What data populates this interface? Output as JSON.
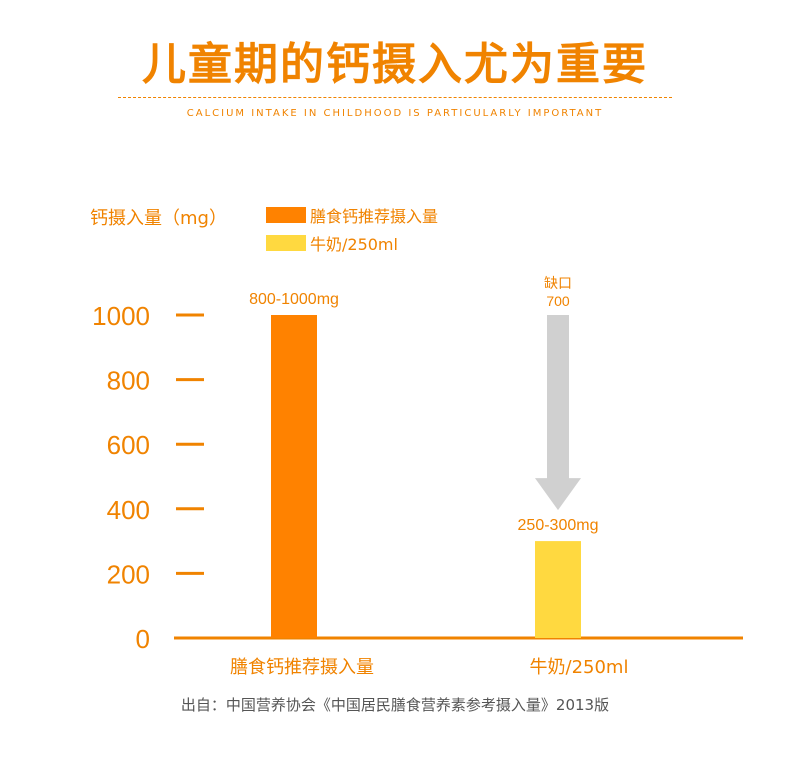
{
  "header": {
    "title": "儿童期的钙摄入尤为重要",
    "subtitle": "CALCIUM INTAKE IN CHILDHOOD IS PARTICULARLY IMPORTANT"
  },
  "legend": {
    "unit_label": "钙摄入量（mg）",
    "items": [
      {
        "label": "膳食钙推荐摄入量",
        "color": "#ff8200"
      },
      {
        "label": "牛奶/250ml",
        "color": "#ffd940"
      }
    ]
  },
  "chart_data": {
    "type": "bar",
    "categories": [
      "膳食钙推荐摄入量",
      "牛奶/250ml"
    ],
    "values": [
      1000,
      300
    ],
    "value_labels": [
      "800-1000mg",
      "250-300mg"
    ],
    "colors": [
      "#ff8200",
      "#ffd940"
    ],
    "yticks": [
      "0",
      "200",
      "400",
      "600",
      "800",
      "1000"
    ],
    "ylim": [
      0,
      1000
    ],
    "grid": false,
    "legend_placement": "top-left",
    "gap_annotation": {
      "label": "缺口",
      "value": "700",
      "from": 1000,
      "to": 300,
      "color": "#d0d0d0"
    },
    "axis_color": "#f08300"
  },
  "footer": {
    "source": "出自：中国营养协会《中国居民膳食营养素参考摄入量》2013版"
  }
}
